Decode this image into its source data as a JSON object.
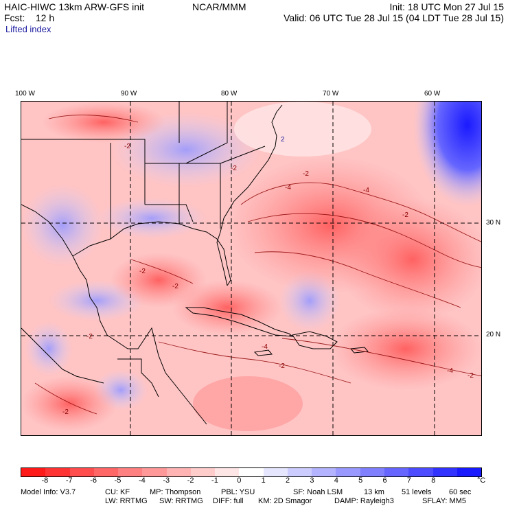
{
  "header": {
    "left_line1": "HAIC-HIWC 13km ARW-GFS init",
    "center_line1": "NCAR/MMM",
    "right_line1": "Init: 18 UTC Mon 27 Jul 15",
    "left_line2": "Fcst:    12 h",
    "right_line2": "Valid: 06 UTC Tue 28 Jul 15 (04 LDT Tue 28 Jul 15)",
    "field_name": "Lifted index"
  },
  "axes": {
    "longitudes": [
      "100 W",
      "90 W",
      "80 W",
      "70 W",
      "60 W"
    ],
    "latitudes": [
      "30 N",
      "20 N"
    ]
  },
  "contour_labels": [
    "-2",
    "-4",
    "-2",
    "-4",
    "-2",
    "-2",
    "-2",
    "-4",
    "-2",
    "-2",
    "-4",
    "-2",
    "-2",
    "-2",
    "2"
  ],
  "colorbar": {
    "unit": "°C",
    "ticks": [
      "-8",
      "-7",
      "-6",
      "-5",
      "-4",
      "-3",
      "-2",
      "-1",
      "0",
      "1",
      "2",
      "3",
      "4",
      "5",
      "6",
      "7",
      "8"
    ],
    "colors": [
      "#ff1a1a",
      "#ff3333",
      "#ff4d4d",
      "#ff6666",
      "#ff8080",
      "#ff9999",
      "#ffb3b3",
      "#ffcccc",
      "#ffe6e6",
      "#ffffff",
      "#e6e6ff",
      "#ccccff",
      "#b3b3ff",
      "#9999ff",
      "#8080ff",
      "#6666ff",
      "#4d4dff",
      "#3333ff",
      "#1a1aff"
    ]
  },
  "footer": {
    "model_info": "Model Info: V3.7",
    "cu": "CU: KF",
    "mp": "MP: Thompson",
    "pbl": "PBL: YSU",
    "sf": "SF: Noah LSM",
    "res": "13 km",
    "levels": "51 levels",
    "dt": "60 sec",
    "lw": "LW: RRTMG",
    "sw": "SW: RRTMG",
    "diff": "DIFF: full",
    "km": "KM: 2D Smagor",
    "damp": "DAMP: Rayleigh3",
    "sflay": "SFLAY: MM5"
  }
}
